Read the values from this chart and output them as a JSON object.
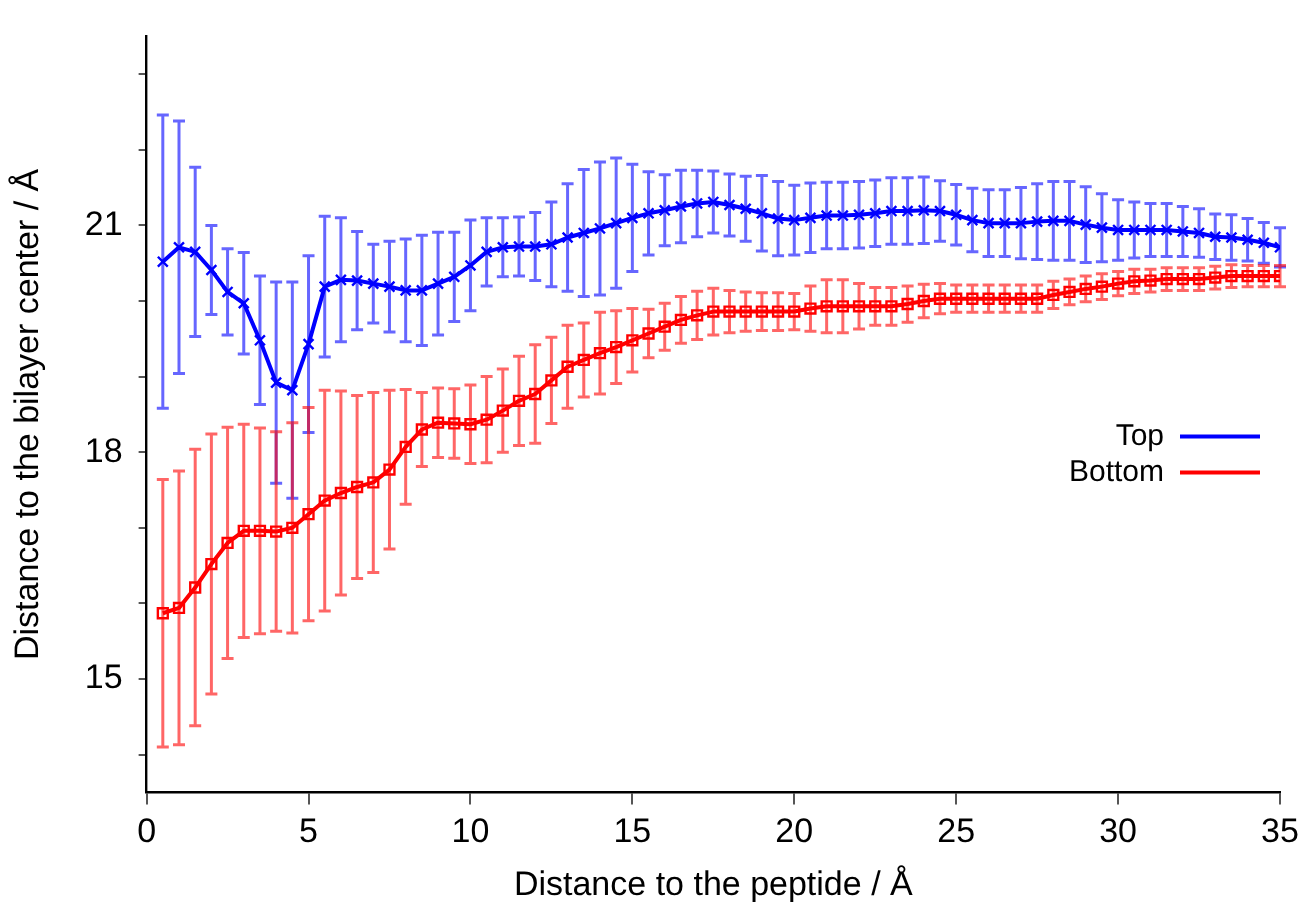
{
  "chart_data": {
    "type": "line",
    "xlabel": "Distance to the peptide / Å",
    "ylabel": "Distance to the bilayer center / Å",
    "xlim": [
      0,
      35
    ],
    "xticks": [
      0,
      5,
      10,
      15,
      20,
      25,
      30,
      35
    ],
    "ylim": [
      13.5,
      23.5
    ],
    "yticks": [
      {
        "value": 14,
        "label": null
      },
      15,
      {
        "value": 16,
        "label": null
      },
      {
        "value": 17,
        "label": null
      },
      18,
      {
        "value": 19,
        "label": null
      },
      {
        "value": 20,
        "label": null
      },
      21,
      {
        "value": 22,
        "label": null
      },
      {
        "value": 23,
        "label": null
      }
    ],
    "legend": "right",
    "x": [
      0.5,
      1,
      1.5,
      2,
      2.5,
      3,
      3.5,
      4,
      4.5,
      5,
      5.5,
      6,
      6.5,
      7,
      7.5,
      8,
      8.5,
      9,
      9.5,
      10,
      10.5,
      11,
      11.5,
      12,
      12.5,
      13,
      13.5,
      14,
      14.5,
      15,
      15.5,
      16,
      16.5,
      17,
      17.5,
      18,
      18.5,
      19,
      19.5,
      20,
      20.5,
      21,
      21.5,
      22,
      22.5,
      23,
      23.5,
      24,
      24.5,
      25,
      25.5,
      26,
      26.5,
      27,
      27.5,
      28,
      28.5,
      29,
      29.5,
      30,
      30.5,
      31,
      31.5,
      32,
      32.5,
      33,
      33.5,
      34,
      34.5,
      35
    ],
    "series": [
      {
        "name": "Top",
        "color": "#0000ff",
        "marker": "cross",
        "values": [
          20.52,
          20.71,
          20.65,
          20.41,
          20.12,
          19.97,
          19.48,
          18.92,
          18.82,
          19.43,
          20.19,
          20.28,
          20.27,
          20.23,
          20.19,
          20.14,
          20.14,
          20.23,
          20.32,
          20.47,
          20.65,
          20.71,
          20.72,
          20.72,
          20.75,
          20.84,
          20.9,
          20.96,
          21.03,
          21.1,
          21.16,
          21.2,
          21.25,
          21.29,
          21.31,
          21.27,
          21.22,
          21.16,
          21.09,
          21.07,
          21.1,
          21.13,
          21.13,
          21.14,
          21.16,
          21.19,
          21.19,
          21.2,
          21.19,
          21.14,
          21.07,
          21.03,
          21.03,
          21.03,
          21.05,
          21.06,
          21.06,
          21.01,
          20.97,
          20.94,
          20.94,
          20.94,
          20.94,
          20.92,
          20.9,
          20.85,
          20.84,
          20.81,
          20.77,
          20.71
        ],
        "errors": [
          1.94,
          1.67,
          1.12,
          0.59,
          0.57,
          0.67,
          0.85,
          1.33,
          1.43,
          1.17,
          0.93,
          0.82,
          0.65,
          0.52,
          0.6,
          0.68,
          0.73,
          0.68,
          0.59,
          0.6,
          0.45,
          0.39,
          0.39,
          0.45,
          0.56,
          0.71,
          0.84,
          0.88,
          0.86,
          0.71,
          0.55,
          0.47,
          0.48,
          0.44,
          0.41,
          0.41,
          0.43,
          0.5,
          0.49,
          0.46,
          0.46,
          0.44,
          0.44,
          0.44,
          0.44,
          0.44,
          0.44,
          0.44,
          0.4,
          0.4,
          0.42,
          0.44,
          0.44,
          0.47,
          0.5,
          0.52,
          0.52,
          0.5,
          0.45,
          0.4,
          0.37,
          0.35,
          0.35,
          0.33,
          0.32,
          0.3,
          0.3,
          0.28,
          0.27,
          0.26
        ]
      },
      {
        "name": "Bottom",
        "color": "#ff0000",
        "marker": "square",
        "values": [
          15.87,
          15.94,
          16.21,
          16.52,
          16.8,
          16.96,
          16.96,
          16.95,
          17.0,
          17.18,
          17.36,
          17.46,
          17.54,
          17.6,
          17.77,
          18.07,
          18.3,
          18.39,
          18.38,
          18.37,
          18.43,
          18.55,
          18.68,
          18.77,
          18.95,
          19.13,
          19.22,
          19.31,
          19.39,
          19.48,
          19.57,
          19.66,
          19.75,
          19.81,
          19.86,
          19.86,
          19.86,
          19.86,
          19.86,
          19.86,
          19.9,
          19.93,
          19.93,
          19.93,
          19.93,
          19.93,
          19.96,
          20.0,
          20.03,
          20.03,
          20.03,
          20.03,
          20.03,
          20.03,
          20.03,
          20.08,
          20.12,
          20.16,
          20.19,
          20.23,
          20.26,
          20.27,
          20.29,
          20.29,
          20.29,
          20.31,
          20.33,
          20.33,
          20.33,
          20.33
        ],
        "errors": [
          1.77,
          1.81,
          1.83,
          1.72,
          1.53,
          1.41,
          1.36,
          1.32,
          1.39,
          1.41,
          1.46,
          1.35,
          1.21,
          1.19,
          1.05,
          0.76,
          0.49,
          0.46,
          0.46,
          0.52,
          0.57,
          0.55,
          0.59,
          0.65,
          0.57,
          0.55,
          0.49,
          0.54,
          0.48,
          0.42,
          0.32,
          0.31,
          0.31,
          0.32,
          0.31,
          0.28,
          0.26,
          0.25,
          0.25,
          0.24,
          0.3,
          0.35,
          0.35,
          0.3,
          0.25,
          0.25,
          0.24,
          0.22,
          0.2,
          0.18,
          0.18,
          0.18,
          0.18,
          0.18,
          0.18,
          0.18,
          0.17,
          0.17,
          0.17,
          0.16,
          0.16,
          0.15,
          0.15,
          0.15,
          0.15,
          0.15,
          0.15,
          0.14,
          0.14,
          0.14
        ]
      }
    ]
  }
}
